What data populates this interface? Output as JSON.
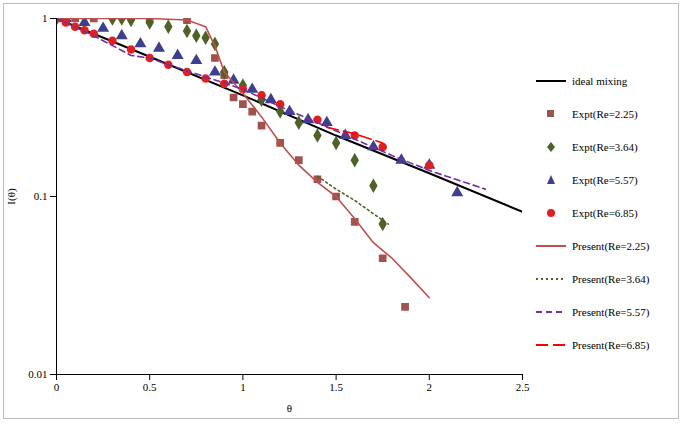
{
  "chart_data": {
    "type": "line",
    "x_label": "θ",
    "y_label": "I(θ)",
    "log": "y",
    "grid": false,
    "legend": "right",
    "xlim": [
      0,
      2.5
    ],
    "xticks": [
      0,
      0.5,
      1,
      1.5,
      2,
      2.5
    ],
    "ylim": [
      0.01,
      1
    ],
    "yticks": [
      0.01,
      0.1,
      1
    ],
    "series": [
      {
        "name": "ideal mixing",
        "type": "line",
        "color": "#000000",
        "line_style": "solid",
        "x": [
          0,
          0.5,
          1,
          1.5,
          2,
          2.5
        ],
        "values": [
          1,
          0.61,
          0.37,
          0.22,
          0.135,
          0.082
        ]
      },
      {
        "name": "Expt(Re=2.25)",
        "type": "scatter",
        "color": "#a0524f",
        "marker": "square",
        "x": [
          0,
          0.1,
          0.2,
          0.5,
          0.7,
          0.85,
          0.9,
          0.95,
          1,
          1.05,
          1.1,
          1.2,
          1.3,
          1.4,
          1.5,
          1.6,
          1.75,
          1.87
        ],
        "values": [
          1,
          1,
          1,
          1,
          0.98,
          0.6,
          0.48,
          0.36,
          0.33,
          0.3,
          0.25,
          0.2,
          0.16,
          0.125,
          0.1,
          0.072,
          0.045,
          0.024
        ]
      },
      {
        "name": "Expt(Re=3.64)",
        "type": "scatter",
        "color": "#4f6228",
        "marker": "diamond",
        "x": [
          0,
          0.3,
          0.35,
          0.4,
          0.5,
          0.6,
          0.7,
          0.75,
          0.8,
          0.85,
          0.9,
          1,
          1.1,
          1.2,
          1.3,
          1.4,
          1.5,
          1.6,
          1.7,
          1.75
        ],
        "values": [
          1,
          1,
          1,
          0.98,
          0.95,
          0.9,
          0.85,
          0.8,
          0.78,
          0.72,
          0.5,
          0.42,
          0.35,
          0.3,
          0.26,
          0.22,
          0.2,
          0.16,
          0.115,
          0.07
        ]
      },
      {
        "name": "Expt(Re=5.57)",
        "type": "scatter",
        "color": "#3f3f8f",
        "marker": "triangle",
        "x": [
          0.05,
          0.15,
          0.25,
          0.35,
          0.45,
          0.55,
          0.65,
          0.75,
          0.85,
          0.95,
          1.05,
          1.15,
          1.25,
          1.35,
          1.45,
          1.55,
          1.7,
          1.85,
          2,
          2.15
        ],
        "values": [
          1,
          0.95,
          0.88,
          0.8,
          0.72,
          0.68,
          0.62,
          0.58,
          0.5,
          0.45,
          0.4,
          0.35,
          0.3,
          0.27,
          0.26,
          0.22,
          0.19,
          0.16,
          0.15,
          0.105
        ]
      },
      {
        "name": "Expt(Re=6.85)",
        "type": "scatter",
        "color": "#e02020",
        "marker": "circle",
        "x": [
          0,
          0.05,
          0.1,
          0.15,
          0.2,
          0.3,
          0.4,
          0.5,
          0.6,
          0.7,
          0.8,
          0.9,
          1,
          1.1,
          1.2,
          1.4,
          1.6,
          1.75,
          2
        ],
        "values": [
          1,
          0.95,
          0.9,
          0.86,
          0.82,
          0.75,
          0.67,
          0.6,
          0.55,
          0.5,
          0.46,
          0.43,
          0.4,
          0.37,
          0.33,
          0.27,
          0.22,
          0.19,
          0.15
        ]
      },
      {
        "name": "Present(Re=2.25)",
        "type": "line",
        "color": "#c0504d",
        "line_style": "solid",
        "x": [
          0,
          0.3,
          0.5,
          0.7,
          0.8,
          0.85,
          0.9,
          1,
          1.1,
          1.2,
          1.3,
          1.4,
          1.5,
          1.6,
          1.7,
          1.8,
          1.9,
          2
        ],
        "values": [
          1,
          1,
          1,
          0.98,
          0.9,
          0.7,
          0.5,
          0.38,
          0.28,
          0.2,
          0.15,
          0.12,
          0.1,
          0.075,
          0.055,
          0.045,
          0.035,
          0.027
        ]
      },
      {
        "name": "Present(Re=3.64)",
        "type": "line",
        "color": "#4f6228",
        "line_style": "dotted",
        "x": [
          1.4,
          1.5,
          1.6,
          1.7,
          1.78
        ],
        "values": [
          0.13,
          0.11,
          0.095,
          0.08,
          0.07
        ]
      },
      {
        "name": "Present(Re=5.57)",
        "type": "line",
        "color": "#7030a0",
        "line_style": "dashed",
        "x": [
          0,
          0.2,
          0.4,
          0.5,
          0.6,
          0.8,
          1,
          1.2,
          1.4,
          1.6,
          1.8,
          2,
          2.3
        ],
        "values": [
          1,
          0.8,
          0.62,
          0.6,
          0.55,
          0.47,
          0.4,
          0.32,
          0.26,
          0.21,
          0.17,
          0.14,
          0.11
        ]
      },
      {
        "name": "Present(Re=6.85)",
        "type": "line",
        "color": "#ff0000",
        "line_style": "longdash",
        "x": [
          1.45,
          1.6,
          1.75
        ],
        "values": [
          0.245,
          0.225,
          0.2
        ]
      }
    ]
  }
}
